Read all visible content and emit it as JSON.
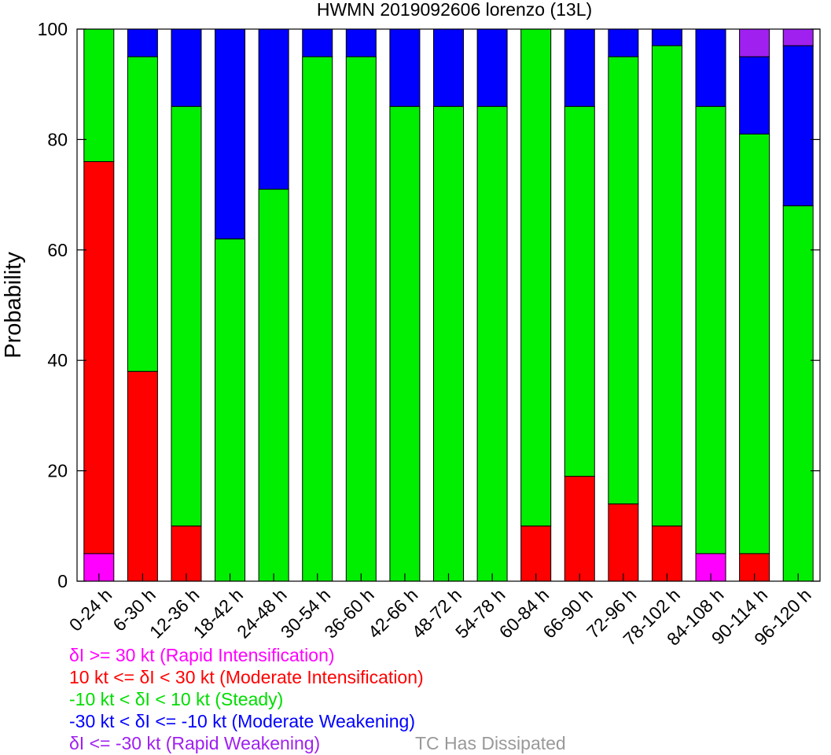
{
  "chart_data": {
    "type": "bar",
    "stacked": true,
    "title": "HWMN 2019092606 lorenzo (13L)",
    "xlabel": "",
    "ylabel": "Probability",
    "ylim": [
      0,
      100
    ],
    "yticks": [
      0,
      20,
      40,
      60,
      80,
      100
    ],
    "grid": false,
    "categories": [
      "0-24 h",
      "6-30 h",
      "12-36 h",
      "18-42 h",
      "24-48 h",
      "30-54 h",
      "36-60 h",
      "42-66 h",
      "48-72 h",
      "54-78 h",
      "60-84 h",
      "66-90 h",
      "72-96 h",
      "78-102 h",
      "84-108 h",
      "90-114 h",
      "96-120 h"
    ],
    "series": [
      {
        "key": "ri",
        "color": "#ff00ff",
        "values": [
          5,
          0,
          0,
          0,
          0,
          0,
          0,
          0,
          0,
          0,
          0,
          0,
          0,
          0,
          5,
          0,
          0
        ]
      },
      {
        "key": "mi",
        "color": "#ff0000",
        "values": [
          71,
          38,
          10,
          0,
          0,
          0,
          0,
          0,
          0,
          0,
          10,
          19,
          14,
          10,
          0,
          5,
          0
        ]
      },
      {
        "key": "st",
        "color": "#00ee00",
        "values": [
          24,
          57,
          76,
          62,
          71,
          95,
          95,
          86,
          86,
          86,
          90,
          67,
          81,
          87,
          81,
          76,
          68
        ]
      },
      {
        "key": "mw",
        "color": "#0000ff",
        "values": [
          0,
          5,
          14,
          38,
          29,
          5,
          5,
          14,
          14,
          14,
          0,
          14,
          5,
          3,
          14,
          14,
          29
        ]
      },
      {
        "key": "rw",
        "color": "#a020f0",
        "values": [
          0,
          0,
          0,
          0,
          0,
          0,
          0,
          0,
          0,
          0,
          0,
          0,
          0,
          0,
          0,
          5,
          3
        ]
      }
    ],
    "legend": [
      {
        "text_a": "δI >= 30 kt (Rapid Intensification)",
        "color": "#ff00ff"
      },
      {
        "text_a": "10 kt <= δI < 30 kt (Moderate Intensification)",
        "color": "#ff0000"
      },
      {
        "text_a": "-10 kt < δI < 10 kt (Steady)",
        "color": "#00dd00"
      },
      {
        "text_a": "-30 kt < δI <= -10 kt (Moderate Weakening)",
        "color": "#0000ff"
      },
      {
        "text_a": "δI <= -30 kt (Rapid Weakening)",
        "color": "#a020f0",
        "text_b": "TC Has Dissipated",
        "color_b": "#999999"
      }
    ]
  }
}
